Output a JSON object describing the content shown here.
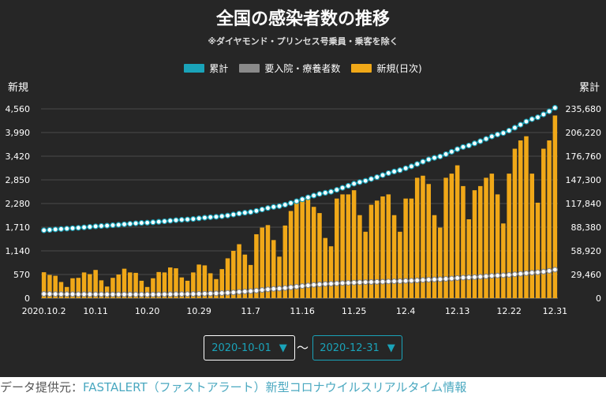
{
  "title": "全国の感染者数の推移",
  "subtitle": "※ダイヤモンド・プリンセス号乗員・乗客を除く",
  "legend": [
    {
      "label": "累計",
      "color": "#1aa3b9"
    },
    {
      "label": "要入院・療養者数",
      "color": "#8a8a8a"
    },
    {
      "label": "新規(日次)",
      "color": "#f0a818"
    }
  ],
  "left_axis_title": "新規",
  "right_axis_title": "累計",
  "date_range": {
    "start": "2020-10-01",
    "end": "2020-12-31",
    "separator": "〜",
    "arrow": "▼"
  },
  "footer": {
    "prefix": "データ提供元：",
    "source": "FASTALERT（ファストアラート）新型コロナウイルスリアルタイム情報"
  },
  "chart_data": {
    "type": "bar",
    "x_tick_labels": [
      "2020.10.2",
      "10.11",
      "10.20",
      "10.29",
      "11.7",
      "11.16",
      "11.25",
      "12.4",
      "12.13",
      "12.22",
      "12.31"
    ],
    "left_axis": {
      "ylim": [
        0,
        4560
      ],
      "ticks": [
        "0",
        "570",
        "1,140",
        "1,710",
        "2,280",
        "2,850",
        "3,420",
        "3,990",
        "4,560"
      ]
    },
    "right_axis": {
      "ylim": [
        0,
        235680
      ],
      "ticks": [
        "0",
        "29,460",
        "58,920",
        "88,380",
        "117,840",
        "147,300",
        "176,760",
        "206,220",
        "235,680"
      ]
    },
    "series": [
      {
        "name": "新規(日次)",
        "axis": "left",
        "type": "bar",
        "values": [
          625,
          560,
          540,
          390,
          270,
          480,
          490,
          620,
          580,
          680,
          430,
          280,
          490,
          570,
          710,
          620,
          610,
          420,
          270,
          480,
          630,
          620,
          740,
          720,
          500,
          420,
          620,
          810,
          790,
          600,
          460,
          700,
          960,
          1140,
          1300,
          1050,
          800,
          1540,
          1700,
          1760,
          1400,
          1000,
          1750,
          2100,
          2300,
          2400,
          2400,
          2200,
          2050,
          1450,
          1250,
          2400,
          2500,
          2500,
          2600,
          2000,
          1600,
          2250,
          2350,
          2450,
          2500,
          2000,
          1600,
          2400,
          2400,
          2900,
          2950,
          2750,
          2000,
          1700,
          2900,
          3000,
          3200,
          2700,
          1900,
          2600,
          2700,
          2900,
          3000,
          2500,
          1800,
          3000,
          3600,
          3800,
          3900,
          3000,
          2300,
          3600,
          3800,
          4400
        ]
      },
      {
        "name": "累計",
        "axis": "right",
        "type": "line",
        "values": [
          84500,
          85000,
          85600,
          86100,
          86600,
          87100,
          87600,
          88200,
          88800,
          89400,
          89900,
          90300,
          90800,
          91300,
          92000,
          92600,
          93200,
          93700,
          94000,
          94500,
          95100,
          95700,
          96400,
          97100,
          97600,
          98000,
          98600,
          99400,
          100200,
          100800,
          101300,
          102000,
          102900,
          104100,
          105400,
          106400,
          107200,
          108700,
          110400,
          112200,
          113600,
          114600,
          116300,
          118400,
          120700,
          123100,
          125500,
          127700,
          129800,
          131200,
          132500,
          134900,
          137400,
          139900,
          142500,
          144500,
          146100,
          148400,
          150700,
          153200,
          155700,
          157700,
          159300,
          161700,
          164100,
          167000,
          169900,
          172700,
          174700,
          176400,
          179300,
          182300,
          185500,
          188200,
          190100,
          192700,
          195400,
          198300,
          201300,
          203800,
          205600,
          208600,
          212200,
          216000,
          219900,
          222900,
          225200,
          228800,
          232600,
          237000
        ]
      },
      {
        "name": "要入院・療養者数",
        "axis": "right",
        "type": "line",
        "values": [
          5300,
          5200,
          5100,
          5000,
          5000,
          4950,
          4900,
          4900,
          4850,
          4800,
          4800,
          4750,
          4700,
          4700,
          4700,
          4700,
          4650,
          4600,
          4600,
          4600,
          4700,
          4800,
          4900,
          5000,
          5050,
          5100,
          5200,
          5400,
          5600,
          5800,
          6000,
          6300,
          6700,
          7200,
          7800,
          8300,
          8800,
          9400,
          10200,
          11000,
          11600,
          12000,
          12700,
          13500,
          14300,
          15100,
          15900,
          16600,
          17200,
          17700,
          18000,
          18400,
          18800,
          19100,
          19400,
          19700,
          19900,
          20100,
          20300,
          20500,
          20800,
          21000,
          21200,
          21500,
          21800,
          22200,
          22600,
          23000,
          23300,
          23600,
          24000,
          24500,
          25100,
          25600,
          25900,
          26200,
          26700,
          27200,
          27800,
          28200,
          28500,
          29000,
          29700,
          30400,
          31100,
          31700,
          32200,
          33000,
          34000,
          35500
        ]
      }
    ]
  }
}
